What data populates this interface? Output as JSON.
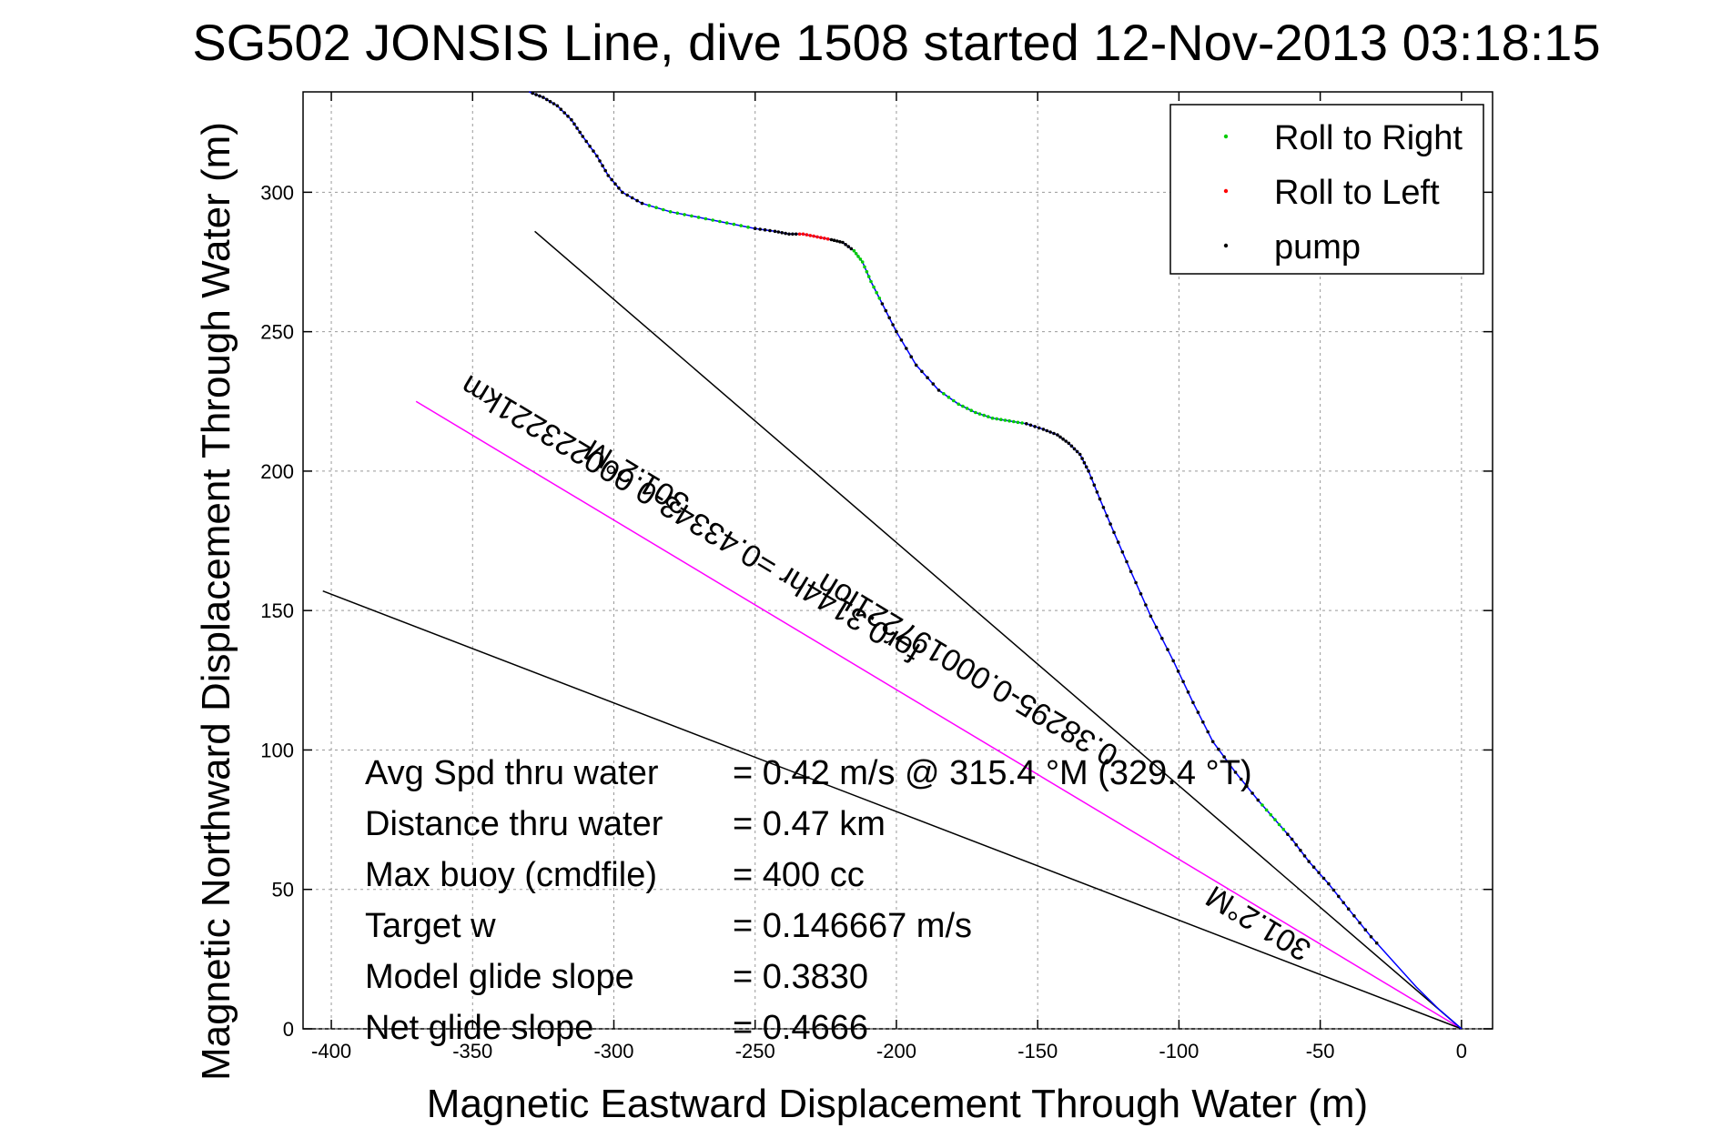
{
  "chart_data": {
    "type": "line",
    "title": "SG502 JONSIS Line, dive 1508 started 12-Nov-2013 03:18:15",
    "xlabel": "Magnetic Eastward Displacement Through Water (m)",
    "ylabel": "Magnetic Northward Displacement Through Water (m)",
    "xlim": [
      -410,
      11
    ],
    "ylim": [
      0,
      336
    ],
    "xticks": [
      -400,
      -350,
      -300,
      -250,
      -200,
      -150,
      -100,
      -50,
      0
    ],
    "yticks": [
      0,
      50,
      100,
      150,
      200,
      250,
      300
    ],
    "grid": true,
    "legend_position": "top-right",
    "legend": [
      {
        "label": "Roll to Right",
        "color": "#00cc00"
      },
      {
        "label": "Roll to Left",
        "color": "#ff0000"
      },
      {
        "label": "pump",
        "color": "#000000"
      }
    ],
    "track": {
      "color": "#0000ff",
      "x": [
        0,
        -8,
        -16,
        -24,
        -32,
        -40,
        -47,
        -54,
        -60,
        -66,
        -72,
        -80,
        -88,
        -95,
        -102,
        -110,
        -117,
        -123,
        -128,
        -132,
        -135,
        -139,
        -143,
        -148,
        -154,
        -160,
        -166,
        -172,
        -178,
        -185,
        -193,
        -200,
        -205,
        -209,
        -212,
        -215,
        -219,
        -223,
        -228,
        -233,
        -238,
        -243,
        -250,
        -260,
        -270,
        -280,
        -290,
        -297,
        -302,
        -306,
        -311,
        -315,
        -320,
        -325,
        -330
      ],
      "y": [
        0,
        7,
        15,
        24,
        33,
        43,
        52,
        60,
        68,
        75,
        82,
        92,
        103,
        117,
        132,
        148,
        164,
        178,
        190,
        200,
        206,
        210,
        213,
        215,
        217,
        218,
        219,
        221,
        224,
        229,
        238,
        250,
        260,
        268,
        275,
        279,
        282,
        283,
        284,
        285,
        285,
        286,
        287,
        289,
        291,
        293,
        296,
        300,
        306,
        313,
        320,
        326,
        331,
        334,
        336
      ]
    },
    "reference_lines": [
      {
        "x": [
          0,
          -328
        ],
        "y": [
          0,
          286
        ],
        "color": "#000000"
      },
      {
        "x": [
          0,
          -370
        ],
        "y": [
          0,
          225
        ],
        "color": "#ff00ff"
      },
      {
        "x": [
          0,
          -403
        ],
        "y": [
          0,
          157
        ],
        "color": "#000000"
      }
    ],
    "annotations": [
      {
        "text": "301.2°M",
        "x": -70,
        "y": 41,
        "rotate": 211
      },
      {
        "text": "0.38295-0.000197221lon",
        "x": -173,
        "y": 132,
        "rotate": 211
      },
      {
        "text": "for0.3144hr =0.43343-0.000223221km",
        "x": -271,
        "y": 186,
        "rotate": 211
      },
      {
        "text": "301.2°M",
        "x": -290,
        "y": 201,
        "rotate": 211
      }
    ]
  },
  "stats": [
    {
      "label": "Avg Spd thru water",
      "value": "=  0.42 m/s @ 315.4 °M (329.4 °T)"
    },
    {
      "label": "Distance thru water",
      "value": "=  0.47 km"
    },
    {
      "label": "Max buoy (cmdfile)",
      "value": "= 400 cc"
    },
    {
      "label": "Target w",
      "value": "= 0.146667 m/s"
    },
    {
      "label": "Model glide slope",
      "value": "= 0.3830"
    },
    {
      "label": "Net glide slope",
      "value": "= 0.4666"
    }
  ]
}
